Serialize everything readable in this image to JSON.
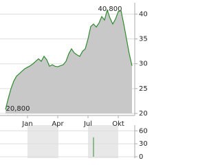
{
  "chart_data": [
    {
      "type": "area",
      "line_color": "#2e8b2e",
      "fill_color": "#c8c8c8",
      "categories": [
        null,
        null,
        null,
        null,
        null,
        null,
        null,
        null,
        "Jan",
        null,
        null,
        null,
        null,
        null,
        null,
        null,
        null,
        null,
        null,
        "Apr",
        null,
        null,
        null,
        null,
        null,
        null,
        null,
        null,
        null,
        null,
        "Jul",
        null,
        null,
        null,
        null,
        null,
        null,
        null,
        null,
        null,
        null,
        "Okt",
        null,
        null,
        null,
        null,
        null
      ],
      "values": [
        20.8,
        23,
        25,
        26.5,
        27.5,
        28,
        28.5,
        29,
        29.3,
        29.6,
        30,
        30.5,
        31,
        30.5,
        31.5,
        30.8,
        29.5,
        29.8,
        29.5,
        29.4,
        29.6,
        29.8,
        30.5,
        32,
        33,
        32.2,
        31.8,
        31.5,
        32.5,
        33,
        35,
        37.5,
        38,
        37.4,
        38.2,
        39.5,
        38.8,
        40.8,
        39.2,
        38,
        39,
        40.5,
        40.7,
        38,
        35,
        32,
        29.6
      ],
      "ylim": [
        20,
        42
      ],
      "yticks": [
        20,
        25,
        30,
        35,
        40
      ],
      "grid": true,
      "annotations": [
        "40,800",
        "20,800"
      ]
    },
    {
      "type": "bar",
      "color": "#2e8b2e",
      "values": [
        0,
        0,
        0,
        0,
        0,
        0,
        0,
        0,
        0,
        0,
        0,
        0,
        0,
        0,
        0,
        0,
        0,
        0,
        0,
        0,
        0,
        0,
        0,
        0,
        0,
        0,
        0,
        0,
        0,
        0,
        0,
        0,
        45,
        0,
        0,
        0,
        0,
        0,
        0,
        0,
        0,
        0,
        0,
        0,
        0,
        0,
        0
      ],
      "ylim": [
        0,
        70
      ],
      "yticks": [
        0,
        30,
        60
      ],
      "grid": true
    }
  ]
}
